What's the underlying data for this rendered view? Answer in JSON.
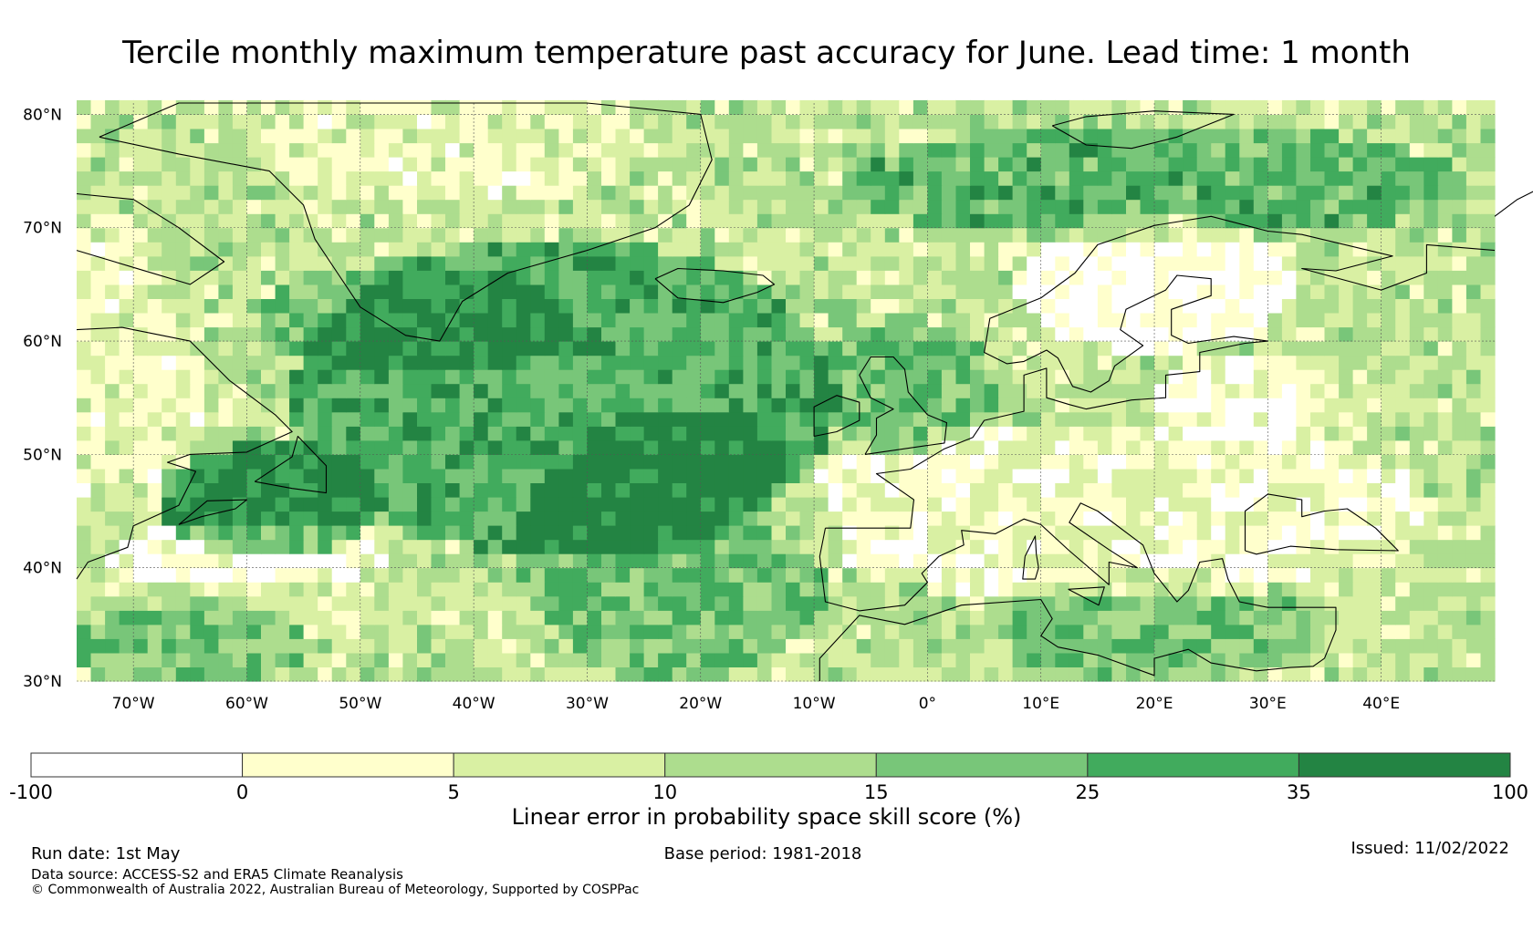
{
  "title": "Tercile monthly maximum temperature past accuracy for June. Lead time: 1 month",
  "map": {
    "lon_range": [
      -75,
      50
    ],
    "lat_range": [
      30,
      81
    ],
    "lat_ticks": [
      {
        "value": 80,
        "label": "80°N"
      },
      {
        "value": 70,
        "label": "70°N"
      },
      {
        "value": 60,
        "label": "60°N"
      },
      {
        "value": 50,
        "label": "50°N"
      },
      {
        "value": 40,
        "label": "40°N"
      },
      {
        "value": 30,
        "label": "30°N"
      }
    ],
    "lon_ticks": [
      {
        "value": -70,
        "label": "70°W"
      },
      {
        "value": -60,
        "label": "60°W"
      },
      {
        "value": -50,
        "label": "50°W"
      },
      {
        "value": -40,
        "label": "40°W"
      },
      {
        "value": -30,
        "label": "30°W"
      },
      {
        "value": -20,
        "label": "20°W"
      },
      {
        "value": -10,
        "label": "10°W"
      },
      {
        "value": 0,
        "label": "0°"
      },
      {
        "value": 10,
        "label": "10°E"
      },
      {
        "value": 20,
        "label": "20°E"
      },
      {
        "value": 30,
        "label": "30°E"
      },
      {
        "value": 40,
        "label": "40°E"
      }
    ],
    "grid_lines": true,
    "coastline_color": "#000000"
  },
  "colorbar": {
    "boundaries": [
      {
        "value": "-100"
      },
      {
        "value": "0"
      },
      {
        "value": "5"
      },
      {
        "value": "10"
      },
      {
        "value": "15"
      },
      {
        "value": "25"
      },
      {
        "value": "35"
      },
      {
        "value": "100"
      }
    ],
    "colors": [
      "#ffffff",
      "#ffffcc",
      "#d9f0a3",
      "#addd8e",
      "#78c679",
      "#41ab5d",
      "#238443"
    ],
    "label": "Linear error in probability space skill score (%)"
  },
  "footer": {
    "run_date": "Run date: 1st May",
    "base_period": "Base period: 1981-2018",
    "issued": "Issued: 11/02/2022",
    "data_source": "Data source: ACCESS-S2 and ERA5 Climate Reanalysis",
    "copyright": "© Commonwealth of Australia 2022, Australian Bureau of Meteorology, Supported by COSPPac"
  }
}
